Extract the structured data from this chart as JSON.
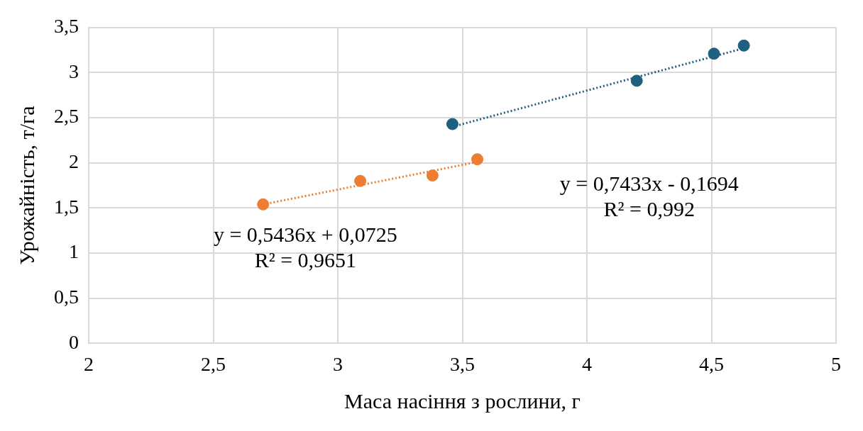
{
  "chart_data": {
    "type": "scatter",
    "xlabel": "Маса насіння з рослини, г",
    "ylabel": "Урожайність, т/га",
    "xlim": [
      2,
      5
    ],
    "xticks": [
      2,
      {
        "value": 2.5,
        "label": "2,5"
      },
      3,
      {
        "value": 3.5,
        "label": "3,5"
      },
      4,
      {
        "value": 4.5,
        "label": "4,5"
      },
      5
    ],
    "ylim": [
      0,
      3.5
    ],
    "yticks": [
      0,
      {
        "value": 0.5,
        "label": "0,5"
      },
      1,
      {
        "value": 1.5,
        "label": "1,5"
      },
      2,
      {
        "value": 2.5,
        "label": "2,5"
      },
      3,
      {
        "value": 3.5,
        "label": "3,5"
      }
    ],
    "grid": true,
    "legend": false,
    "marker": "circle",
    "series": [
      {
        "type": "scatter",
        "color": "#ed7d31",
        "x": [
          2.7,
          3.09,
          3.38,
          3.56
        ],
        "values": [
          1.54,
          1.8,
          1.86,
          2.04
        ]
      },
      {
        "type": "scatter",
        "color": "#1f5f7f",
        "x": [
          3.46,
          4.2,
          4.51,
          4.63
        ],
        "values": [
          2.43,
          2.91,
          3.21,
          3.3
        ]
      },
      {
        "type": "line",
        "color": "#ed7d31",
        "line_style": "dotted",
        "marker": "none",
        "x": [
          2.7,
          3.56
        ],
        "values": [
          1.54,
          2.01
        ]
      },
      {
        "type": "line",
        "color": "#1f5f7f",
        "line_style": "dotted",
        "marker": "none",
        "x": [
          3.46,
          4.63
        ],
        "values": [
          2.4,
          3.27
        ]
      }
    ],
    "annotations": [
      "y = 0,5436x + 0,0725\nR² = 0,9651",
      "y = 0,7433x - 0,1694\nR² = 0,992"
    ]
  }
}
